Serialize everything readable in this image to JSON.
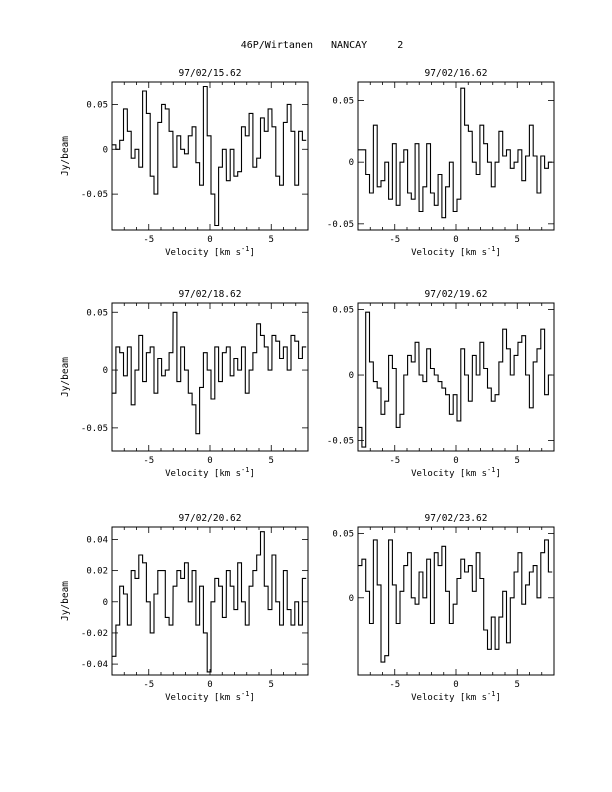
{
  "page": {
    "title": "46P/Wirtanen   NANCAY     2"
  },
  "chart_data": [
    {
      "type": "line",
      "title": "97/02/15.62",
      "xlabel": "Velocity [km s^-1]",
      "ylabel": "Jy/beam",
      "xlim": [
        -8,
        8
      ],
      "ylim": [
        -0.09,
        0.075
      ],
      "xticks": [
        -5,
        0,
        5
      ],
      "yticks": [
        -0.05,
        0,
        0.05
      ],
      "ytick_labels": [
        "-0.05",
        "0",
        "0.05"
      ],
      "x": [
        -7.84,
        -7.53,
        -7.22,
        -6.91,
        -6.59,
        -6.28,
        -5.97,
        -5.66,
        -5.35,
        -5.04,
        -4.73,
        -4.42,
        -4.11,
        -3.8,
        -3.49,
        -3.18,
        -2.86,
        -2.55,
        -2.24,
        -1.93,
        -1.62,
        -1.31,
        -1.0,
        -0.69,
        -0.38,
        -0.07,
        0.24,
        0.55,
        0.86,
        1.17,
        1.49,
        1.8,
        2.11,
        2.42,
        2.73,
        3.04,
        3.35,
        3.66,
        3.97,
        4.28,
        4.59,
        4.9,
        5.22,
        5.53,
        5.84,
        6.15,
        6.46,
        6.77,
        7.08,
        7.39,
        7.7
      ],
      "y": [
        0.005,
        0.0,
        0.01,
        0.045,
        0.02,
        -0.01,
        0.0,
        -0.02,
        0.065,
        0.04,
        -0.03,
        -0.05,
        0.03,
        0.05,
        0.045,
        0.02,
        -0.02,
        0.015,
        0.0,
        -0.005,
        0.015,
        0.025,
        -0.015,
        -0.04,
        0.07,
        0.015,
        -0.05,
        -0.085,
        -0.02,
        0.0,
        -0.035,
        0.0,
        -0.03,
        -0.025,
        0.025,
        0.015,
        0.04,
        -0.02,
        -0.01,
        0.035,
        0.02,
        0.045,
        0.025,
        -0.03,
        -0.04,
        0.03,
        0.05,
        0.02,
        -0.04,
        0.02,
        0.01
      ]
    },
    {
      "type": "line",
      "title": "97/02/16.62",
      "xlabel": "Velocity [km s^-1]",
      "ylabel": "",
      "xlim": [
        -8,
        8
      ],
      "ylim": [
        -0.055,
        0.065
      ],
      "xticks": [
        -5,
        0,
        5
      ],
      "yticks": [
        -0.05,
        0,
        0.05
      ],
      "ytick_labels": [
        "-0.05",
        "0",
        "0.05"
      ],
      "x": [
        -7.84,
        -7.53,
        -7.22,
        -6.91,
        -6.59,
        -6.28,
        -5.97,
        -5.66,
        -5.35,
        -5.04,
        -4.73,
        -4.42,
        -4.11,
        -3.8,
        -3.49,
        -3.18,
        -2.86,
        -2.55,
        -2.24,
        -1.93,
        -1.62,
        -1.31,
        -1.0,
        -0.69,
        -0.38,
        -0.07,
        0.24,
        0.55,
        0.86,
        1.17,
        1.49,
        1.8,
        2.11,
        2.42,
        2.73,
        3.04,
        3.35,
        3.66,
        3.97,
        4.28,
        4.59,
        4.9,
        5.22,
        5.53,
        5.84,
        6.15,
        6.46,
        6.77,
        7.08,
        7.39,
        7.7
      ],
      "y": [
        0.01,
        0.01,
        -0.01,
        -0.025,
        0.03,
        -0.02,
        -0.015,
        0.0,
        -0.03,
        0.015,
        -0.035,
        0.0,
        0.01,
        -0.025,
        -0.03,
        0.015,
        -0.04,
        -0.02,
        0.015,
        -0.025,
        -0.035,
        -0.01,
        -0.045,
        -0.02,
        0.0,
        -0.04,
        -0.03,
        0.06,
        0.03,
        0.025,
        0.0,
        -0.01,
        0.03,
        0.015,
        0.0,
        -0.02,
        0.0,
        0.025,
        0.005,
        0.01,
        -0.005,
        0.0,
        0.01,
        -0.015,
        0.005,
        0.03,
        0.005,
        -0.025,
        0.005,
        -0.005,
        0.0
      ]
    },
    {
      "type": "line",
      "title": "97/02/18.62",
      "xlabel": "Velocity [km s^-1]",
      "ylabel": "Jy/beam",
      "xlim": [
        -8,
        8
      ],
      "ylim": [
        -0.07,
        0.058
      ],
      "xticks": [
        -5,
        0,
        5
      ],
      "yticks": [
        -0.05,
        0,
        0.05
      ],
      "ytick_labels": [
        "-0.05",
        "0",
        "0.05"
      ],
      "x": [
        -7.84,
        -7.53,
        -7.22,
        -6.91,
        -6.59,
        -6.28,
        -5.97,
        -5.66,
        -5.35,
        -5.04,
        -4.73,
        -4.42,
        -4.11,
        -3.8,
        -3.49,
        -3.18,
        -2.86,
        -2.55,
        -2.24,
        -1.93,
        -1.62,
        -1.31,
        -1.0,
        -0.69,
        -0.38,
        -0.07,
        0.24,
        0.55,
        0.86,
        1.17,
        1.49,
        1.8,
        2.11,
        2.42,
        2.73,
        3.04,
        3.35,
        3.66,
        3.97,
        4.28,
        4.59,
        4.9,
        5.22,
        5.53,
        5.84,
        6.15,
        6.46,
        6.77,
        7.08,
        7.39,
        7.7
      ],
      "y": [
        -0.02,
        0.02,
        0.015,
        -0.005,
        0.02,
        -0.03,
        0.0,
        0.03,
        -0.01,
        0.015,
        0.02,
        -0.02,
        0.01,
        -0.005,
        0.0,
        0.015,
        0.05,
        -0.01,
        0.02,
        0.0,
        -0.02,
        -0.03,
        -0.055,
        -0.015,
        0.015,
        0.0,
        -0.025,
        0.02,
        -0.01,
        0.015,
        0.02,
        -0.005,
        0.01,
        0.0,
        0.02,
        -0.02,
        0.0,
        0.015,
        0.04,
        0.03,
        0.02,
        0.0,
        0.03,
        0.025,
        0.01,
        0.02,
        0.0,
        0.03,
        0.025,
        0.01,
        0.02
      ]
    },
    {
      "type": "line",
      "title": "97/02/19.62",
      "xlabel": "Velocity [km s^-1]",
      "ylabel": "",
      "xlim": [
        -8,
        8
      ],
      "ylim": [
        -0.058,
        0.055
      ],
      "xticks": [
        -5,
        0,
        5
      ],
      "yticks": [
        -0.05,
        0,
        0.05
      ],
      "ytick_labels": [
        "-0.05",
        "0",
        "0.05"
      ],
      "x": [
        -7.84,
        -7.53,
        -7.22,
        -6.91,
        -6.59,
        -6.28,
        -5.97,
        -5.66,
        -5.35,
        -5.04,
        -4.73,
        -4.42,
        -4.11,
        -3.8,
        -3.49,
        -3.18,
        -2.86,
        -2.55,
        -2.24,
        -1.93,
        -1.62,
        -1.31,
        -1.0,
        -0.69,
        -0.38,
        -0.07,
        0.24,
        0.55,
        0.86,
        1.17,
        1.49,
        1.8,
        2.11,
        2.42,
        2.73,
        3.04,
        3.35,
        3.66,
        3.97,
        4.28,
        4.59,
        4.9,
        5.22,
        5.53,
        5.84,
        6.15,
        6.46,
        6.77,
        7.08,
        7.39,
        7.7
      ],
      "y": [
        -0.04,
        -0.055,
        0.048,
        0.01,
        -0.005,
        -0.01,
        -0.03,
        -0.02,
        0.015,
        0.005,
        -0.04,
        -0.03,
        0.0,
        0.015,
        0.01,
        0.025,
        0.0,
        -0.005,
        0.02,
        0.005,
        0.0,
        -0.005,
        -0.01,
        -0.015,
        -0.03,
        -0.015,
        -0.035,
        0.02,
        0.0,
        -0.02,
        0.015,
        0.0,
        0.025,
        0.005,
        -0.01,
        -0.02,
        -0.015,
        0.01,
        0.035,
        0.02,
        0.0,
        0.015,
        0.025,
        0.03,
        0.0,
        -0.025,
        0.01,
        0.02,
        0.035,
        -0.015,
        0.0
      ]
    },
    {
      "type": "line",
      "title": "97/02/20.62",
      "xlabel": "Velocity [km s^-1]",
      "ylabel": "Jy/beam",
      "xlim": [
        -8,
        8
      ],
      "ylim": [
        -0.047,
        0.048
      ],
      "xticks": [
        -5,
        0,
        5
      ],
      "yticks": [
        -0.04,
        -0.02,
        0,
        0.02,
        0.04
      ],
      "ytick_labels": [
        "-0.04",
        "-0.02",
        "0",
        "0.02",
        "0.04"
      ],
      "x": [
        -7.84,
        -7.53,
        -7.22,
        -6.91,
        -6.59,
        -6.28,
        -5.97,
        -5.66,
        -5.35,
        -5.04,
        -4.73,
        -4.42,
        -4.11,
        -3.8,
        -3.49,
        -3.18,
        -2.86,
        -2.55,
        -2.24,
        -1.93,
        -1.62,
        -1.31,
        -1.0,
        -0.69,
        -0.38,
        -0.07,
        0.24,
        0.55,
        0.86,
        1.17,
        1.49,
        1.8,
        2.11,
        2.42,
        2.73,
        3.04,
        3.35,
        3.66,
        3.97,
        4.28,
        4.59,
        4.9,
        5.22,
        5.53,
        5.84,
        6.15,
        6.46,
        6.77,
        7.08,
        7.39,
        7.7
      ],
      "y": [
        -0.035,
        -0.015,
        0.01,
        0.005,
        -0.015,
        0.02,
        0.015,
        0.03,
        0.025,
        0.0,
        -0.02,
        0.005,
        0.02,
        0.02,
        -0.01,
        -0.015,
        0.01,
        0.02,
        0.015,
        0.025,
        0.0,
        0.02,
        -0.015,
        0.01,
        -0.02,
        -0.045,
        0.0,
        0.015,
        0.01,
        -0.01,
        0.02,
        0.01,
        -0.005,
        0.025,
        0.0,
        -0.015,
        0.01,
        0.02,
        0.03,
        0.045,
        0.01,
        -0.005,
        0.03,
        0.0,
        -0.015,
        0.02,
        -0.005,
        -0.015,
        0.0,
        -0.015,
        0.015
      ]
    },
    {
      "type": "line",
      "title": "97/02/23.62",
      "xlabel": "Velocity [km s^-1]",
      "ylabel": "",
      "xlim": [
        -8,
        8
      ],
      "ylim": [
        -0.06,
        0.055
      ],
      "xticks": [
        -5,
        0,
        5
      ],
      "yticks": [
        0,
        0.05
      ],
      "ytick_labels": [
        "0",
        "0.05"
      ],
      "x": [
        -7.84,
        -7.53,
        -7.22,
        -6.91,
        -6.59,
        -6.28,
        -5.97,
        -5.66,
        -5.35,
        -5.04,
        -4.73,
        -4.42,
        -4.11,
        -3.8,
        -3.49,
        -3.18,
        -2.86,
        -2.55,
        -2.24,
        -1.93,
        -1.62,
        -1.31,
        -1.0,
        -0.69,
        -0.38,
        -0.07,
        0.24,
        0.55,
        0.86,
        1.17,
        1.49,
        1.8,
        2.11,
        2.42,
        2.73,
        3.04,
        3.35,
        3.66,
        3.97,
        4.28,
        4.59,
        4.9,
        5.22,
        5.53,
        5.84,
        6.15,
        6.46,
        6.77,
        7.08,
        7.39,
        7.7
      ],
      "y": [
        0.025,
        0.03,
        0.005,
        -0.02,
        0.045,
        0.01,
        -0.05,
        -0.045,
        0.045,
        0.01,
        -0.02,
        0.005,
        0.025,
        0.035,
        0.0,
        -0.005,
        0.02,
        0.0,
        0.03,
        -0.02,
        0.035,
        0.025,
        0.04,
        0.005,
        -0.02,
        -0.005,
        0.015,
        0.03,
        0.02,
        0.025,
        0.005,
        0.035,
        0.015,
        -0.025,
        -0.04,
        -0.015,
        -0.04,
        -0.015,
        0.005,
        -0.035,
        0.0,
        0.02,
        0.035,
        -0.005,
        0.01,
        0.02,
        0.025,
        0.0,
        0.035,
        0.045,
        0.02
      ]
    }
  ]
}
